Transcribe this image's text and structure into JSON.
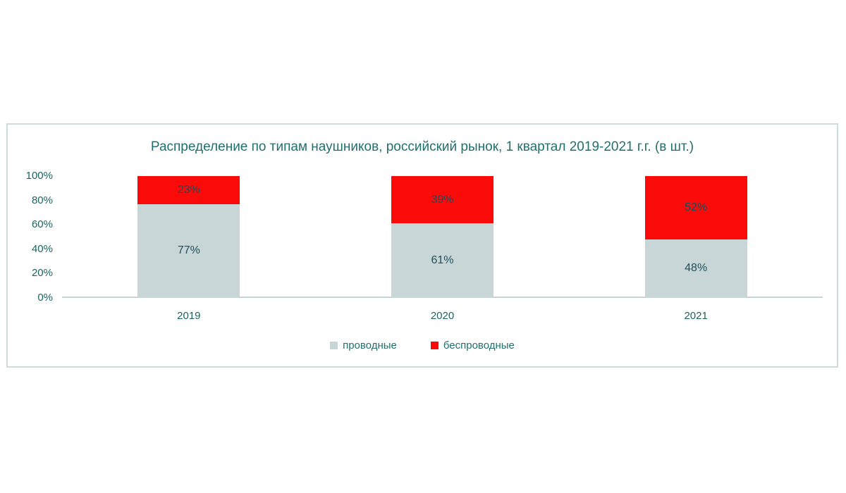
{
  "page": {
    "background": "#ffffff"
  },
  "chart_data": {
    "type": "bar",
    "variant": "stacked-100-percent",
    "title": "Распределение по типам наушников, российский рынок, 1 квартал 2019-2021 г.г. (в шт.)",
    "categories": [
      "2019",
      "2020",
      "2021"
    ],
    "series": [
      {
        "name": "проводные",
        "color": "#c9d6d8",
        "values": [
          77,
          61,
          48
        ]
      },
      {
        "name": "беспроводные",
        "color": "#fb0a0a",
        "values": [
          23,
          39,
          52
        ]
      }
    ],
    "data_label_suffix": "%",
    "xlabel": "",
    "ylabel": "",
    "ylim": [
      0,
      100
    ],
    "yticks": [
      0,
      20,
      40,
      60,
      80,
      100
    ],
    "ytick_labels": [
      "0%",
      "20%",
      "40%",
      "60%",
      "80%",
      "100%"
    ],
    "grid": false,
    "legend_position": "bottom"
  },
  "style": {
    "title_color": "#21706d",
    "tick_color": "#1e6360",
    "data_label_color": "#1e4f5a",
    "legend_text_color": "#21706d",
    "axis_line_color": "#c6d5d6",
    "border_color": "#ccdbdc"
  }
}
